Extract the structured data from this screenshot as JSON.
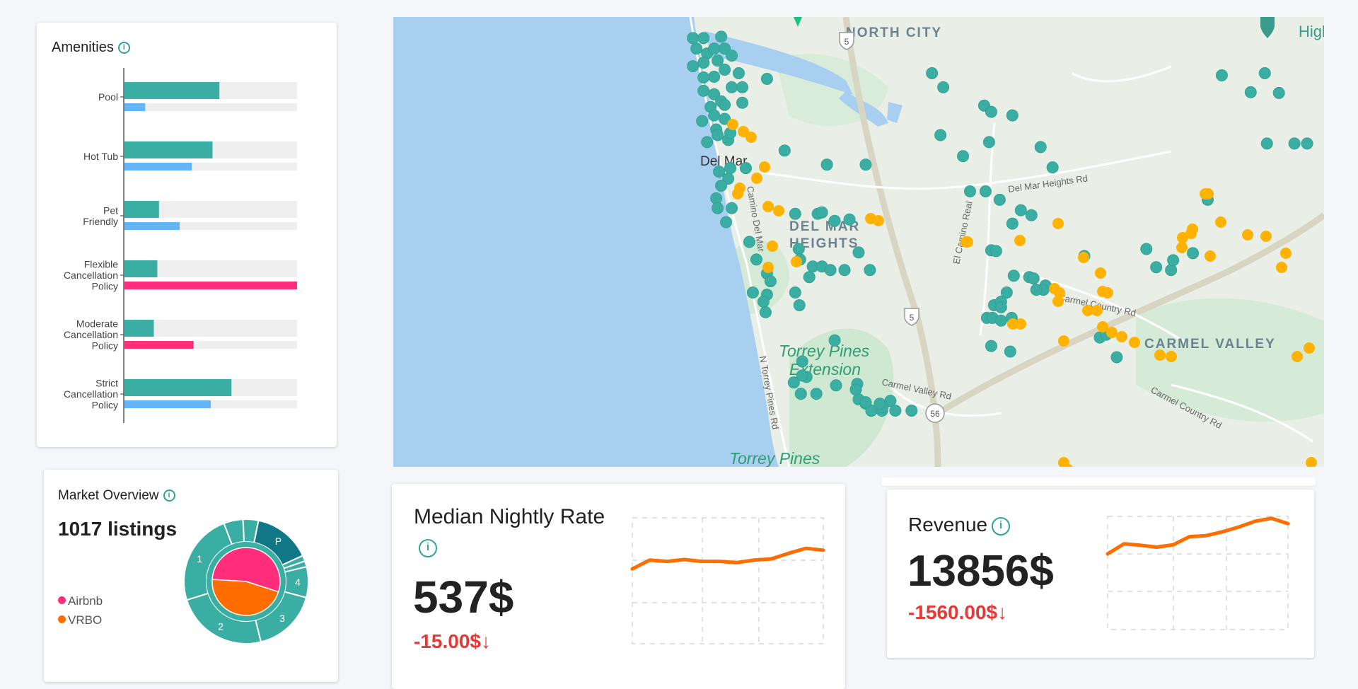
{
  "colors": {
    "teal": "#3aaea3",
    "blue": "#64b5f6",
    "pink": "#ff2d7a",
    "orange": "#ff6d00",
    "yellow": "#ffb300",
    "track": "#eeeeee",
    "water": "#a8cff0",
    "red": "#e53935"
  },
  "amenities": {
    "title": "Amenities",
    "info_icon": "info-icon",
    "rows": [
      {
        "label": [
          "Pool"
        ],
        "primary": 0.55,
        "secondary": 0.12,
        "secondary_color": "blue"
      },
      {
        "label": [
          "Hot Tub"
        ],
        "primary": 0.51,
        "secondary": 0.39,
        "secondary_color": "blue"
      },
      {
        "label": [
          "Pet",
          "Friendly"
        ],
        "primary": 0.2,
        "secondary": 0.32,
        "secondary_color": "blue"
      },
      {
        "label": [
          "Flexible",
          "Cancellation",
          "Policy"
        ],
        "primary": 0.19,
        "secondary": 1.0,
        "secondary_color": "pink"
      },
      {
        "label": [
          "Moderate",
          "Cancellation",
          "Policy"
        ],
        "primary": 0.17,
        "secondary": 0.4,
        "secondary_color": "pink"
      },
      {
        "label": [
          "Strict",
          "Cancellation",
          "Policy"
        ],
        "primary": 0.62,
        "secondary": 0.5,
        "secondary_color": "blue"
      }
    ]
  },
  "market": {
    "title": "Market Overview",
    "listings": "1017 listings",
    "legend": [
      {
        "label": "Airbnb",
        "color": "pink"
      },
      {
        "label": "VRBO",
        "color": "orange"
      }
    ],
    "inner_pie": [
      {
        "name": "Airbnb",
        "value": 0.54,
        "color": "pink"
      },
      {
        "name": "VRBO",
        "value": 0.46,
        "color": "orange"
      }
    ],
    "outer_ring": [
      {
        "label": "P",
        "value": 0.15,
        "color": "#0f7785"
      },
      {
        "label": "",
        "value": 0.015,
        "color": "#3aaea3"
      },
      {
        "label": "",
        "value": 0.015,
        "color": "#3aaea3"
      },
      {
        "label": "4",
        "value": 0.08,
        "color": "#3aaea3"
      },
      {
        "label": "3",
        "value": 0.17,
        "color": "#3aaea3"
      },
      {
        "label": "2",
        "value": 0.24,
        "color": "#3aaea3"
      },
      {
        "label": "1",
        "value": 0.24,
        "color": "#3aaea3"
      },
      {
        "label": "",
        "value": 0.05,
        "color": "#3aaea3"
      },
      {
        "label": "",
        "value": 0.04,
        "color": "#3aaea3"
      }
    ]
  },
  "map": {
    "place_labels": [
      {
        "text": "NORTH CITY",
        "style": "area"
      },
      {
        "text": "Del Mar",
        "style": "city"
      },
      {
        "text": "DEL MAR",
        "style": "area"
      },
      {
        "text": "HEIGHTS",
        "style": "area"
      },
      {
        "text": "Torrey Pines",
        "style": "park"
      },
      {
        "text": "Extension",
        "style": "park"
      },
      {
        "text": "Torrey Pines",
        "style": "park"
      },
      {
        "text": "CARMEL VALLEY",
        "style": "area"
      },
      {
        "text": "High",
        "style": "area"
      }
    ],
    "road_labels": [
      "Del Mar Heights Rd",
      "El Camino Real",
      "Carmel Country Rd",
      "Carmel Country Rd",
      "N Torrey Pines Rd",
      "Camino Del Mar",
      "Carmel Valley Rd"
    ],
    "shields": [
      "5",
      "5",
      "56"
    ],
    "markers": [
      "teal-listing-marker",
      "yellow-listing-marker"
    ]
  },
  "median": {
    "title": "Median Nightly Rate",
    "value": "537$",
    "delta": "-15.00$↓",
    "sparkline": [
      0.82,
      0.68,
      0.7,
      0.67,
      0.7,
      0.7,
      0.72,
      0.68,
      0.66,
      0.57,
      0.49,
      0.52
    ]
  },
  "revenue": {
    "title": "Revenue",
    "value": "13856$",
    "delta": "-1560.00$↓",
    "sparkline": [
      0.78,
      0.57,
      0.6,
      0.64,
      0.59,
      0.42,
      0.4,
      0.32,
      0.22,
      0.1,
      0.04,
      0.15
    ]
  }
}
